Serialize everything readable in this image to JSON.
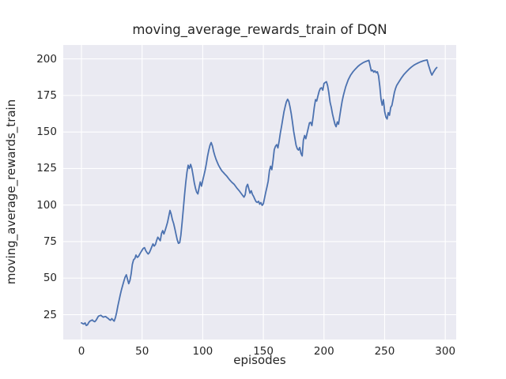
{
  "figure": {
    "title": "moving_average_rewards_train of DQN",
    "xlabel": "episodes",
    "ylabel": "moving_average_rewards_train"
  },
  "colors": {
    "line": "#4c72b0",
    "plot_background": "#eaeaf2",
    "grid": "#ffffff",
    "figure_background": "#ffffff",
    "text": "#262626"
  },
  "chart_data": {
    "type": "line",
    "title": "moving_average_rewards_train of DQN",
    "xlabel": "episodes",
    "ylabel": "moving_average_rewards_train",
    "xlim": [
      -15,
      309
    ],
    "ylim": [
      8,
      209.5
    ],
    "xticks": [
      0,
      50,
      100,
      150,
      200,
      250,
      300
    ],
    "yticks": [
      25,
      50,
      75,
      100,
      125,
      150,
      175,
      200
    ],
    "grid": true,
    "legend": null,
    "series": [
      {
        "name": "DQN",
        "x": [
          0,
          1,
          2,
          3,
          4,
          5,
          6,
          7,
          8,
          9,
          10,
          11,
          12,
          13,
          14,
          15,
          16,
          17,
          18,
          19,
          20,
          21,
          22,
          23,
          24,
          25,
          26,
          27,
          28,
          29,
          30,
          31,
          32,
          33,
          34,
          35,
          36,
          37,
          38,
          39,
          40,
          41,
          42,
          43,
          44,
          45,
          46,
          47,
          48,
          49,
          50,
          51,
          52,
          53,
          54,
          55,
          56,
          57,
          58,
          59,
          60,
          61,
          62,
          63,
          64,
          65,
          66,
          67,
          68,
          69,
          70,
          71,
          72,
          73,
          74,
          75,
          76,
          77,
          78,
          79,
          80,
          81,
          82,
          83,
          84,
          85,
          86,
          87,
          88,
          89,
          90,
          91,
          92,
          93,
          94,
          95,
          96,
          97,
          98,
          99,
          100,
          101,
          102,
          103,
          104,
          105,
          106,
          107,
          108,
          109,
          110,
          111,
          112,
          113,
          114,
          115,
          116,
          117,
          118,
          120,
          122,
          124,
          126,
          128,
          130,
          132,
          134,
          135,
          136,
          137,
          138,
          139,
          140,
          141,
          142,
          143,
          144,
          145,
          146,
          147,
          148,
          149,
          150,
          151,
          152,
          153,
          154,
          155,
          156,
          157,
          158,
          159,
          160,
          161,
          162,
          163,
          164,
          165,
          166,
          167,
          168,
          169,
          170,
          171,
          172,
          173,
          174,
          175,
          176,
          177,
          178,
          179,
          180,
          181,
          182,
          183,
          184,
          185,
          186,
          187,
          188,
          189,
          190,
          191,
          192,
          193,
          194,
          195,
          196,
          197,
          198,
          199,
          200,
          201,
          202,
          203,
          204,
          205,
          206,
          207,
          208,
          209,
          210,
          211,
          212,
          213,
          214,
          215,
          216,
          217,
          218,
          219,
          220,
          222,
          224,
          226,
          228,
          230,
          232,
          234,
          236,
          237,
          238,
          239,
          240,
          241,
          242,
          243,
          244,
          245,
          246,
          247,
          248,
          249,
          250,
          251,
          252,
          253,
          254,
          255,
          256,
          257,
          258,
          259,
          260,
          262,
          264,
          266,
          268,
          270,
          272,
          274,
          276,
          278,
          280,
          282,
          284,
          285,
          286,
          287,
          288,
          289,
          290,
          291,
          292,
          293
        ],
        "y": [
          19.4,
          18.9,
          18.6,
          19.4,
          17.6,
          18.1,
          19.6,
          20.6,
          21.0,
          21.4,
          20.6,
          20.2,
          21.1,
          22.6,
          24.0,
          24.3,
          24.6,
          23.9,
          23.3,
          23.6,
          23.7,
          23.0,
          22.4,
          21.6,
          21.2,
          22.3,
          21.4,
          20.6,
          23.0,
          26.5,
          30.8,
          34.8,
          38.6,
          42.0,
          45.1,
          48.0,
          50.6,
          52.3,
          49.2,
          46.2,
          48.5,
          53.0,
          59.5,
          62.6,
          63.3,
          65.8,
          64.2,
          64.8,
          66.3,
          67.8,
          69.1,
          70.4,
          70.8,
          68.9,
          67.6,
          66.5,
          67.4,
          69.3,
          71.5,
          73.4,
          71.9,
          73.0,
          75.8,
          78.0,
          76.8,
          75.6,
          80.6,
          82.5,
          80.2,
          82.7,
          85.4,
          88.2,
          92.4,
          96.3,
          93.8,
          89.9,
          87.4,
          83.9,
          79.8,
          76.2,
          73.8,
          74.3,
          79.5,
          87.9,
          97.5,
          106.8,
          115.2,
          122.6,
          127.3,
          125.0,
          127.8,
          125.2,
          120.7,
          115.4,
          111.6,
          108.9,
          107.6,
          111.9,
          115.8,
          112.9,
          116.8,
          120.2,
          124.0,
          128.3,
          133.4,
          137.6,
          140.9,
          142.8,
          140.4,
          136.6,
          133.8,
          131.2,
          129.3,
          127.4,
          125.8,
          124.4,
          123.2,
          122.3,
          121.4,
          119.6,
          117.4,
          115.6,
          114.1,
          111.8,
          109.9,
          107.6,
          105.4,
          107.0,
          112.4,
          114.2,
          111.2,
          108.1,
          109.8,
          107.3,
          105.9,
          103.9,
          102.3,
          101.8,
          102.6,
          100.6,
          101.7,
          99.8,
          100.9,
          104.8,
          108.9,
          112.4,
          116.3,
          123.5,
          126.6,
          124.2,
          130.7,
          137.9,
          140.2,
          141.3,
          139.1,
          143.6,
          149.3,
          153.8,
          158.7,
          163.9,
          167.4,
          170.6,
          172.4,
          170.9,
          167.2,
          162.4,
          156.8,
          150.3,
          145.6,
          140.9,
          138.4,
          137.6,
          139.4,
          135.2,
          133.6,
          144.3,
          147.6,
          145.4,
          148.9,
          152.6,
          156.2,
          156.6,
          154.4,
          160.3,
          166.8,
          172.1,
          171.2,
          174.6,
          177.9,
          179.8,
          180.3,
          178.6,
          183.2,
          183.9,
          184.4,
          181.6,
          176.8,
          170.3,
          166.9,
          162.4,
          158.7,
          155.4,
          153.6,
          156.9,
          155.3,
          160.8,
          166.4,
          171.2,
          174.9,
          178.3,
          181.2,
          183.4,
          185.8,
          188.9,
          191.3,
          193.2,
          194.9,
          196.2,
          197.3,
          198.1,
          198.7,
          199.0,
          195.4,
          191.8,
          192.3,
          190.9,
          191.8,
          190.6,
          191.2,
          188.4,
          181.2,
          172.6,
          168.3,
          172.1,
          164.2,
          160.3,
          158.9,
          163.2,
          161.4,
          166.8,
          168.2,
          172.4,
          176.9,
          179.8,
          181.9,
          184.6,
          187.2,
          189.4,
          191.2,
          192.9,
          194.3,
          195.6,
          196.6,
          197.4,
          198.1,
          198.7,
          199.1,
          199.3,
          196.2,
          193.4,
          190.8,
          188.9,
          190.6,
          191.9,
          193.2,
          194.1
        ]
      }
    ]
  }
}
